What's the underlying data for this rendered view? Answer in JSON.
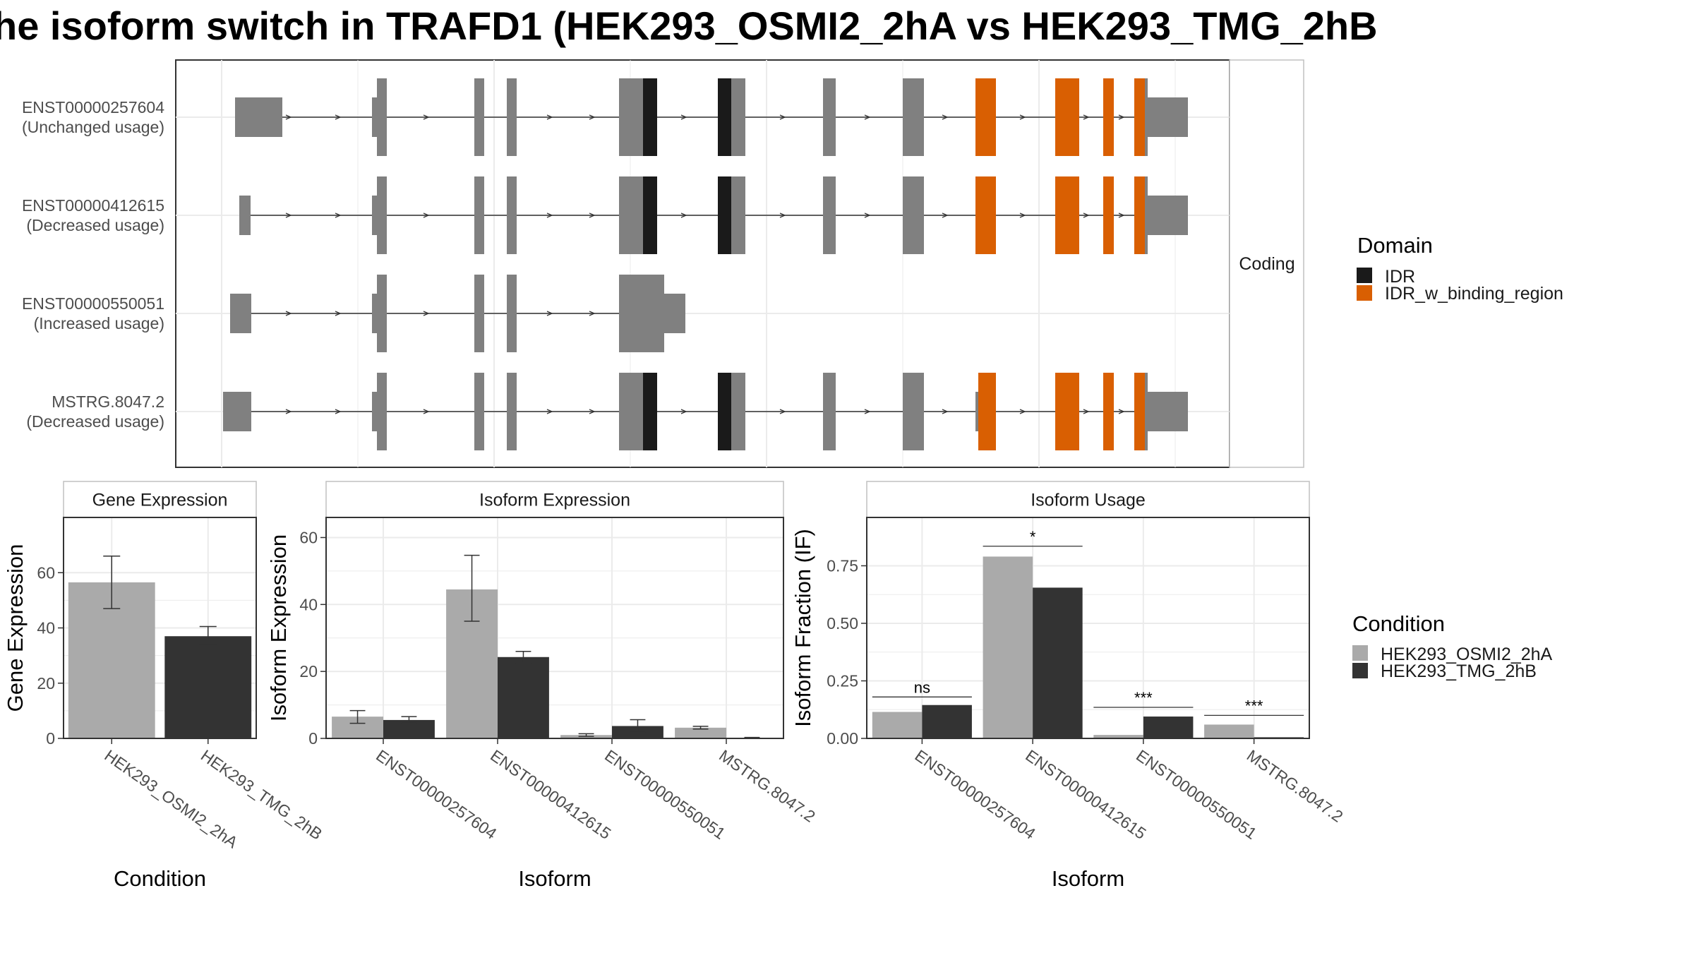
{
  "title": "he isoform switch in TRAFD1 (HEK293_OSMI2_2hA vs HEK293_TMG_2hB",
  "colors": {
    "cond_a": "#aaaaaa",
    "cond_b": "#333333",
    "exon": "#808080",
    "idr": "#1a1a1a",
    "idr_binding": "#d95f02",
    "grid": "#ebebeb",
    "border": "#333333",
    "strip_border": "#c0c0c0",
    "text": "#4d4d4d"
  },
  "structure": {
    "facet_label": "Coding",
    "isoforms": [
      {
        "id": "ENST00000257604",
        "note": "(Unchanged usage)"
      },
      {
        "id": "ENST00000412615",
        "note": "(Decreased usage)"
      },
      {
        "id": "ENST00000550051",
        "note": "(Increased usage)"
      },
      {
        "id": "MSTRG.8047.2",
        "note": "(Decreased usage)"
      }
    ],
    "legend": {
      "title": "Domain",
      "items": [
        {
          "label": "IDR",
          "color": "#1a1a1a"
        },
        {
          "label": "IDR_w_binding_region",
          "color": "#d95f02"
        }
      ]
    }
  },
  "condition_legend": {
    "title": "Condition",
    "items": [
      {
        "label": "HEK293_OSMI2_2hA",
        "color": "#aaaaaa"
      },
      {
        "label": "HEK293_TMG_2hB",
        "color": "#333333"
      }
    ]
  },
  "chart_data": [
    {
      "panel": "gene_expression",
      "type": "bar",
      "title": "Gene Expression",
      "xlabel": "Condition",
      "ylabel": "Gene Expression",
      "ylim": [
        0,
        80
      ],
      "yticks": [
        0,
        20,
        40,
        60
      ],
      "categories": [
        "HEK293_OSMI2_2hA",
        "HEK293_TMG_2hB"
      ],
      "values": [
        56.5,
        37
      ],
      "errors": [
        [
          47,
          66
        ],
        [
          34,
          40.5
        ]
      ],
      "grid": true
    },
    {
      "panel": "isoform_expression",
      "type": "bar",
      "title": "Isoform Expression",
      "xlabel": "Isoform",
      "ylabel": "Isoform Expression",
      "ylim": [
        0,
        66
      ],
      "yticks": [
        0,
        20,
        40,
        60
      ],
      "categories": [
        "ENST00000257604",
        "ENST00000412615",
        "ENST00000550051",
        "MSTRG.8047.2"
      ],
      "series": [
        {
          "name": "HEK293_OSMI2_2hA",
          "values": [
            6.5,
            44.5,
            1,
            3.2
          ],
          "errors": [
            [
              4.5,
              8.3
            ],
            [
              35,
              54.7
            ],
            [
              0.6,
              1.4
            ],
            [
              2.8,
              3.6
            ]
          ]
        },
        {
          "name": "HEK293_TMG_2hB",
          "values": [
            5.5,
            24.3,
            3.7,
            0.2
          ],
          "errors": [
            [
              4.5,
              6.5
            ],
            [
              22.5,
              26
            ],
            [
              1.8,
              5.6
            ],
            [
              0.1,
              0.3
            ]
          ]
        }
      ],
      "grid": true
    },
    {
      "panel": "isoform_usage",
      "type": "bar",
      "title": "Isoform Usage",
      "xlabel": "Isoform",
      "ylabel": "Isoform Fraction (IF)",
      "ylim": [
        0,
        0.96
      ],
      "yticks": [
        0,
        0.25,
        0.5,
        0.75
      ],
      "ytick_labels": [
        "0.00",
        "0.25",
        "0.50",
        "0.75"
      ],
      "categories": [
        "ENST00000257604",
        "ENST00000412615",
        "ENST00000550051",
        "MSTRG.8047.2"
      ],
      "series": [
        {
          "name": "HEK293_OSMI2_2hA",
          "values": [
            0.115,
            0.79,
            0.015,
            0.06
          ]
        },
        {
          "name": "HEK293_TMG_2hB",
          "values": [
            0.145,
            0.655,
            0.095,
            0.005
          ]
        }
      ],
      "significance": [
        {
          "label": "ns",
          "y": 0.18
        },
        {
          "label": "*",
          "y": 0.835
        },
        {
          "label": "***",
          "y": 0.135
        },
        {
          "label": "***",
          "y": 0.1
        }
      ],
      "grid": true
    }
  ]
}
